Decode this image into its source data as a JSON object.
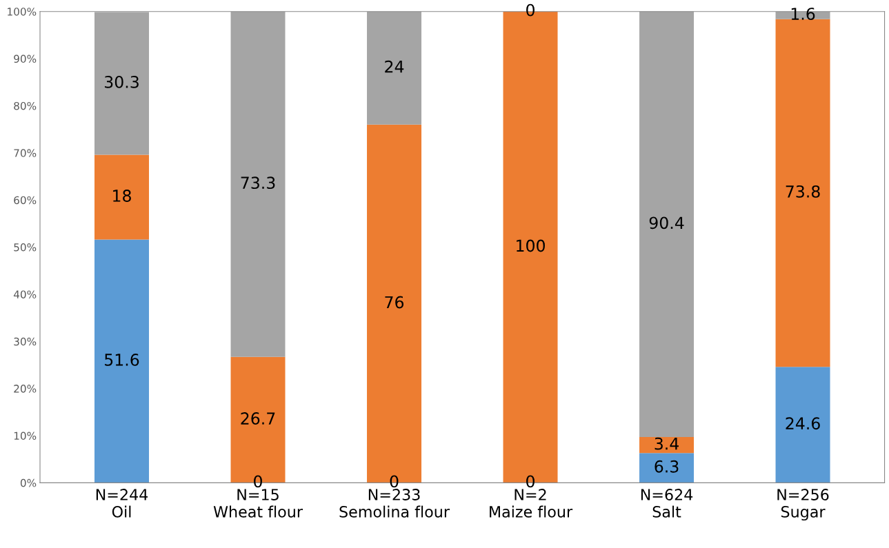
{
  "chart_data": {
    "type": "bar",
    "stacked": true,
    "grid": false,
    "legend": false,
    "categories": [
      "N=244\nOil",
      "N=15\nWheat flour",
      "N=233\nSemolina flour",
      "N=2\nMaize flour",
      "N=624\nSalt",
      "N=256\nSugar"
    ],
    "series": [
      {
        "color": "#5b9bd5",
        "values": [
          51.6,
          0,
          0,
          0,
          6.3,
          24.6
        ],
        "value_labels": [
          "51.6",
          null,
          null,
          null,
          "6.3",
          "24.6"
        ]
      },
      {
        "color": "#ed7d31",
        "values": [
          18,
          26.7,
          76,
          100,
          3.4,
          73.8
        ],
        "value_labels": [
          "18",
          "26.7",
          "76",
          "100",
          "3.4",
          "73.8"
        ]
      },
      {
        "color": "#a5a5a5",
        "values": [
          30.3,
          73.3,
          24,
          0,
          90.4,
          1.6
        ],
        "value_labels": [
          "30.3",
          "73.3",
          "24",
          null,
          "90.4",
          "1.6"
        ]
      }
    ],
    "annotations": [
      {
        "text": "0",
        "x": "N=15\nWheat flour",
        "y": 0
      },
      {
        "text": "0",
        "x": "N=233\nSemolina flour",
        "y": 0
      },
      {
        "text": "0",
        "x": "N=2\nMaize flour",
        "y": 0
      },
      {
        "text": "0",
        "x": "N=2\nMaize flour",
        "y": 100
      }
    ],
    "ylim": [
      0,
      100
    ],
    "yticks": [
      {
        "value": 0,
        "label": "0%"
      },
      {
        "value": 10,
        "label": "10%"
      },
      {
        "value": 20,
        "label": "20%"
      },
      {
        "value": 30,
        "label": "30%"
      },
      {
        "value": 40,
        "label": "40%"
      },
      {
        "value": 50,
        "label": "50%"
      },
      {
        "value": 60,
        "label": "60%"
      },
      {
        "value": 70,
        "label": "70%"
      },
      {
        "value": 80,
        "label": "80%"
      },
      {
        "value": 90,
        "label": "90%"
      },
      {
        "value": 100,
        "label": "100%"
      }
    ]
  }
}
